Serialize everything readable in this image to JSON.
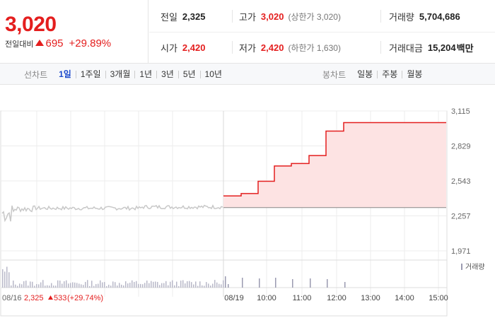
{
  "summary": {
    "price": "3,020",
    "change_label": "전일대비",
    "change_value": "695",
    "change_rate": "+29.89%",
    "prev_close_label": "전일",
    "prev_close": "2,325",
    "high_label": "고가",
    "high": "3,020",
    "upper_limit": "(상한가 3,020)",
    "volume_label": "거래량",
    "volume": "5,704,686",
    "open_label": "시가",
    "open": "2,420",
    "low_label": "저가",
    "low": "2,420",
    "lower_limit": "(하한가 1,630)",
    "amount_label": "거래대금",
    "amount": "15,204",
    "amount_unit": "백만"
  },
  "toolbar": {
    "line_label": "선차트",
    "line_periods": [
      "1일",
      "1주일",
      "3개월",
      "1년",
      "3년",
      "5년",
      "10년"
    ],
    "line_active": 0,
    "candle_label": "봉차트",
    "candle_periods": [
      "일봉",
      "주봉",
      "월봉"
    ]
  },
  "colors": {
    "up": "#e41e1e",
    "fill": "#fde3e3",
    "prev_line": "#c8c8c8",
    "grid": "#ececec",
    "volume_bar": "#9a9ab0",
    "active_tab": "#1e4ccc"
  },
  "chart_data": {
    "type": "line",
    "y_ticks": [
      "3,115",
      "2,829",
      "2,543",
      "2,257",
      "1,971"
    ],
    "ylim": [
      1971,
      3115
    ],
    "x_ticks": [
      "08/19",
      "10:00",
      "11:00",
      "12:00",
      "13:00",
      "14:00",
      "15:00"
    ],
    "prev_day_label": "08/16",
    "prev_day_close": "2,325",
    "prev_day_change": "533",
    "prev_day_rate": "(+29.74%)",
    "volume_legend": "거래량",
    "today_steps": [
      {
        "t": "09:00",
        "price": 2420
      },
      {
        "t": "09:30",
        "price": 2440
      },
      {
        "t": "10:00",
        "price": 2540
      },
      {
        "t": "10:30",
        "price": 2665
      },
      {
        "t": "11:00",
        "price": 2685
      },
      {
        "t": "11:30",
        "price": 2750
      },
      {
        "t": "12:00",
        "price": 2950
      },
      {
        "t": "12:30",
        "price": 3020
      },
      {
        "t": "15:30",
        "price": 3020
      }
    ],
    "base_price": 2325
  }
}
